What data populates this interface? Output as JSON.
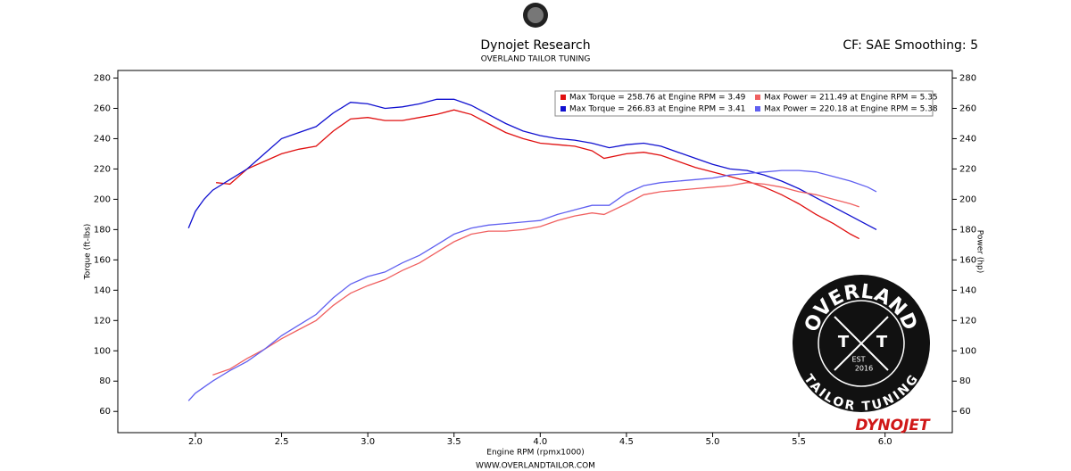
{
  "chart_data": {
    "type": "line",
    "title": "Dynojet Research",
    "subtitle": "OVERLAND TAILOR TUNING",
    "corner_note": "CF: SAE Smoothing: 5",
    "x_label": "Engine RPM (rpmx1000)",
    "y_label": "Torque (ft-lbs)",
    "y2_label": "Power (hp)",
    "footer": "WWW.OVERLANDTAILOR.COM",
    "xlim": [
      1.55,
      6.39
    ],
    "ylim": [
      46,
      285
    ],
    "y2lim": [
      46,
      285
    ],
    "xticks": [
      {
        "value": 2,
        "label": "2.0"
      },
      2.5,
      {
        "value": 3,
        "label": "3.0"
      },
      3.5,
      {
        "value": 4,
        "label": "4.0"
      },
      4.5,
      {
        "value": 5,
        "label": "5.0"
      },
      5.5,
      {
        "value": 6,
        "label": "6.0"
      }
    ],
    "yticks": [
      60,
      80,
      100,
      120,
      140,
      160,
      180,
      200,
      220,
      240,
      260,
      280
    ],
    "y2ticks": [
      60,
      80,
      100,
      120,
      140,
      160,
      180,
      200,
      220,
      240,
      260,
      280
    ],
    "grid": false,
    "legend_position": "top-right",
    "series": [
      {
        "name": "Max Torque = 258.76 at Engine RPM = 3.49",
        "color": "#e01010",
        "x": [
          2.12,
          2.2,
          2.3,
          2.4,
          2.5,
          2.6,
          2.7,
          2.8,
          2.9,
          3.0,
          3.1,
          3.2,
          3.3,
          3.4,
          3.5,
          3.6,
          3.7,
          3.8,
          3.9,
          4.0,
          4.1,
          4.2,
          4.3,
          4.37,
          4.5,
          4.6,
          4.7,
          4.8,
          4.9,
          5.0,
          5.1,
          5.2,
          5.3,
          5.4,
          5.5,
          5.6,
          5.7,
          5.8,
          5.85
        ],
        "values": [
          211,
          210,
          220,
          225,
          230,
          233,
          235,
          245,
          253,
          254,
          252,
          252,
          254,
          256,
          259,
          256,
          250,
          244,
          240,
          237,
          236,
          235,
          232,
          227,
          230,
          231,
          229,
          225,
          221,
          218,
          215,
          212,
          208,
          203,
          197,
          190,
          184,
          177,
          174
        ]
      },
      {
        "name": "Max Torque = 266.83 at Engine RPM = 3.41",
        "color": "#1010d0",
        "x": [
          1.96,
          2.0,
          2.05,
          2.1,
          2.2,
          2.3,
          2.4,
          2.5,
          2.6,
          2.7,
          2.8,
          2.9,
          3.0,
          3.1,
          3.2,
          3.3,
          3.4,
          3.5,
          3.6,
          3.7,
          3.8,
          3.9,
          4.0,
          4.1,
          4.2,
          4.3,
          4.4,
          4.5,
          4.6,
          4.7,
          4.8,
          4.9,
          5.0,
          5.1,
          5.2,
          5.3,
          5.4,
          5.5,
          5.6,
          5.7,
          5.8,
          5.9,
          5.95
        ],
        "values": [
          181,
          192,
          200,
          206,
          213,
          220,
          230,
          240,
          244,
          248,
          257,
          264,
          263,
          260,
          261,
          263,
          266,
          266,
          262,
          256,
          250,
          245,
          242,
          240,
          239,
          237,
          234,
          236,
          237,
          235,
          231,
          227,
          223,
          220,
          219,
          216,
          212,
          207,
          201,
          195,
          189,
          183,
          180
        ]
      },
      {
        "name": "Max Power = 211.49 at Engine RPM = 5.35",
        "color": "#f06060",
        "axis": "y2",
        "x": [
          2.1,
          2.2,
          2.3,
          2.4,
          2.5,
          2.6,
          2.7,
          2.8,
          2.9,
          3.0,
          3.1,
          3.2,
          3.3,
          3.4,
          3.5,
          3.6,
          3.7,
          3.8,
          3.9,
          4.0,
          4.1,
          4.2,
          4.3,
          4.37,
          4.5,
          4.6,
          4.7,
          4.8,
          4.9,
          5.0,
          5.1,
          5.2,
          5.3,
          5.4,
          5.5,
          5.6,
          5.7,
          5.8,
          5.85
        ],
        "values": [
          84,
          88,
          95,
          101,
          108,
          114,
          120,
          130,
          138,
          143,
          147,
          153,
          158,
          165,
          172,
          177,
          179,
          179,
          180,
          182,
          186,
          189,
          191,
          190,
          197,
          203,
          205,
          206,
          207,
          208,
          209,
          211,
          210,
          208,
          205,
          203,
          200,
          197,
          195
        ]
      },
      {
        "name": "Max Power = 220.18 at Engine RPM = 5.38",
        "color": "#6060f0",
        "axis": "y2",
        "x": [
          1.96,
          2.0,
          2.1,
          2.2,
          2.3,
          2.4,
          2.5,
          2.6,
          2.7,
          2.8,
          2.9,
          3.0,
          3.1,
          3.2,
          3.3,
          3.4,
          3.5,
          3.6,
          3.7,
          3.8,
          3.9,
          4.0,
          4.1,
          4.2,
          4.3,
          4.4,
          4.5,
          4.6,
          4.7,
          4.8,
          4.9,
          5.0,
          5.1,
          5.2,
          5.3,
          5.4,
          5.5,
          5.6,
          5.7,
          5.8,
          5.9,
          5.95
        ],
        "values": [
          67,
          72,
          80,
          87,
          93,
          101,
          110,
          117,
          124,
          135,
          144,
          149,
          152,
          158,
          163,
          170,
          177,
          181,
          183,
          184,
          185,
          186,
          190,
          193,
          196,
          196,
          204,
          209,
          211,
          212,
          213,
          214,
          216,
          217,
          218,
          219,
          219,
          218,
          215,
          212,
          208,
          205
        ]
      }
    ]
  },
  "logos": {
    "badge_top": "OVERLAND",
    "badge_bottom": "TAILOR TUNING",
    "badge_est": "EST",
    "badge_year": "2016",
    "badge_letter_left": "T",
    "badge_letter_right": "T",
    "brand": "DYNOJET"
  }
}
